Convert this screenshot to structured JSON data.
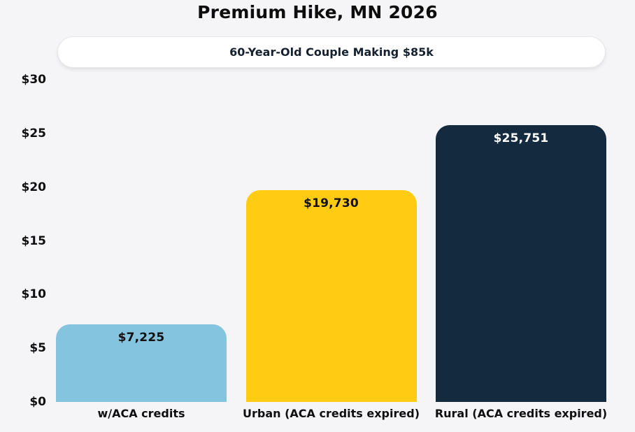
{
  "page": {
    "title": "Premium Hike, MN 2026",
    "subtitle": "60-Year-Old Couple Making $85k"
  },
  "colors": {
    "background": "#f5f4f6",
    "title_text": "#0d0d0d",
    "pill_background": "#ffffff",
    "pill_border": "#e7e7e8",
    "pill_text": "#15212f"
  },
  "chart_data": {
    "type": "bar",
    "title": "Premium Hike, MN 2026",
    "subtitle": "60-Year-Old Couple Making $85k",
    "categories": [
      "w/ACA credits",
      "Urban (ACA credits expired)",
      "Rural (ACA credits expired)"
    ],
    "values": [
      7225,
      19730,
      25751
    ],
    "value_labels": [
      "$7,225",
      "$19,730",
      "$25,751"
    ],
    "bar_colors": [
      "#85c4de",
      "#ffcb13",
      "#142a3f"
    ],
    "value_label_colors": [
      "#111111",
      "#111111",
      "#ffffff"
    ],
    "ylim": [
      0,
      30000
    ],
    "yticks": [
      {
        "label": "$0",
        "value": 0
      },
      {
        "label": "$5",
        "value": 5000
      },
      {
        "label": "$10",
        "value": 10000
      },
      {
        "label": "$15",
        "value": 15000
      },
      {
        "label": "$20",
        "value": 20000
      },
      {
        "label": "$25",
        "value": 25000
      },
      {
        "label": "$30",
        "value": 30000
      }
    ],
    "grid": false,
    "legend": null,
    "axis_lines": false
  }
}
